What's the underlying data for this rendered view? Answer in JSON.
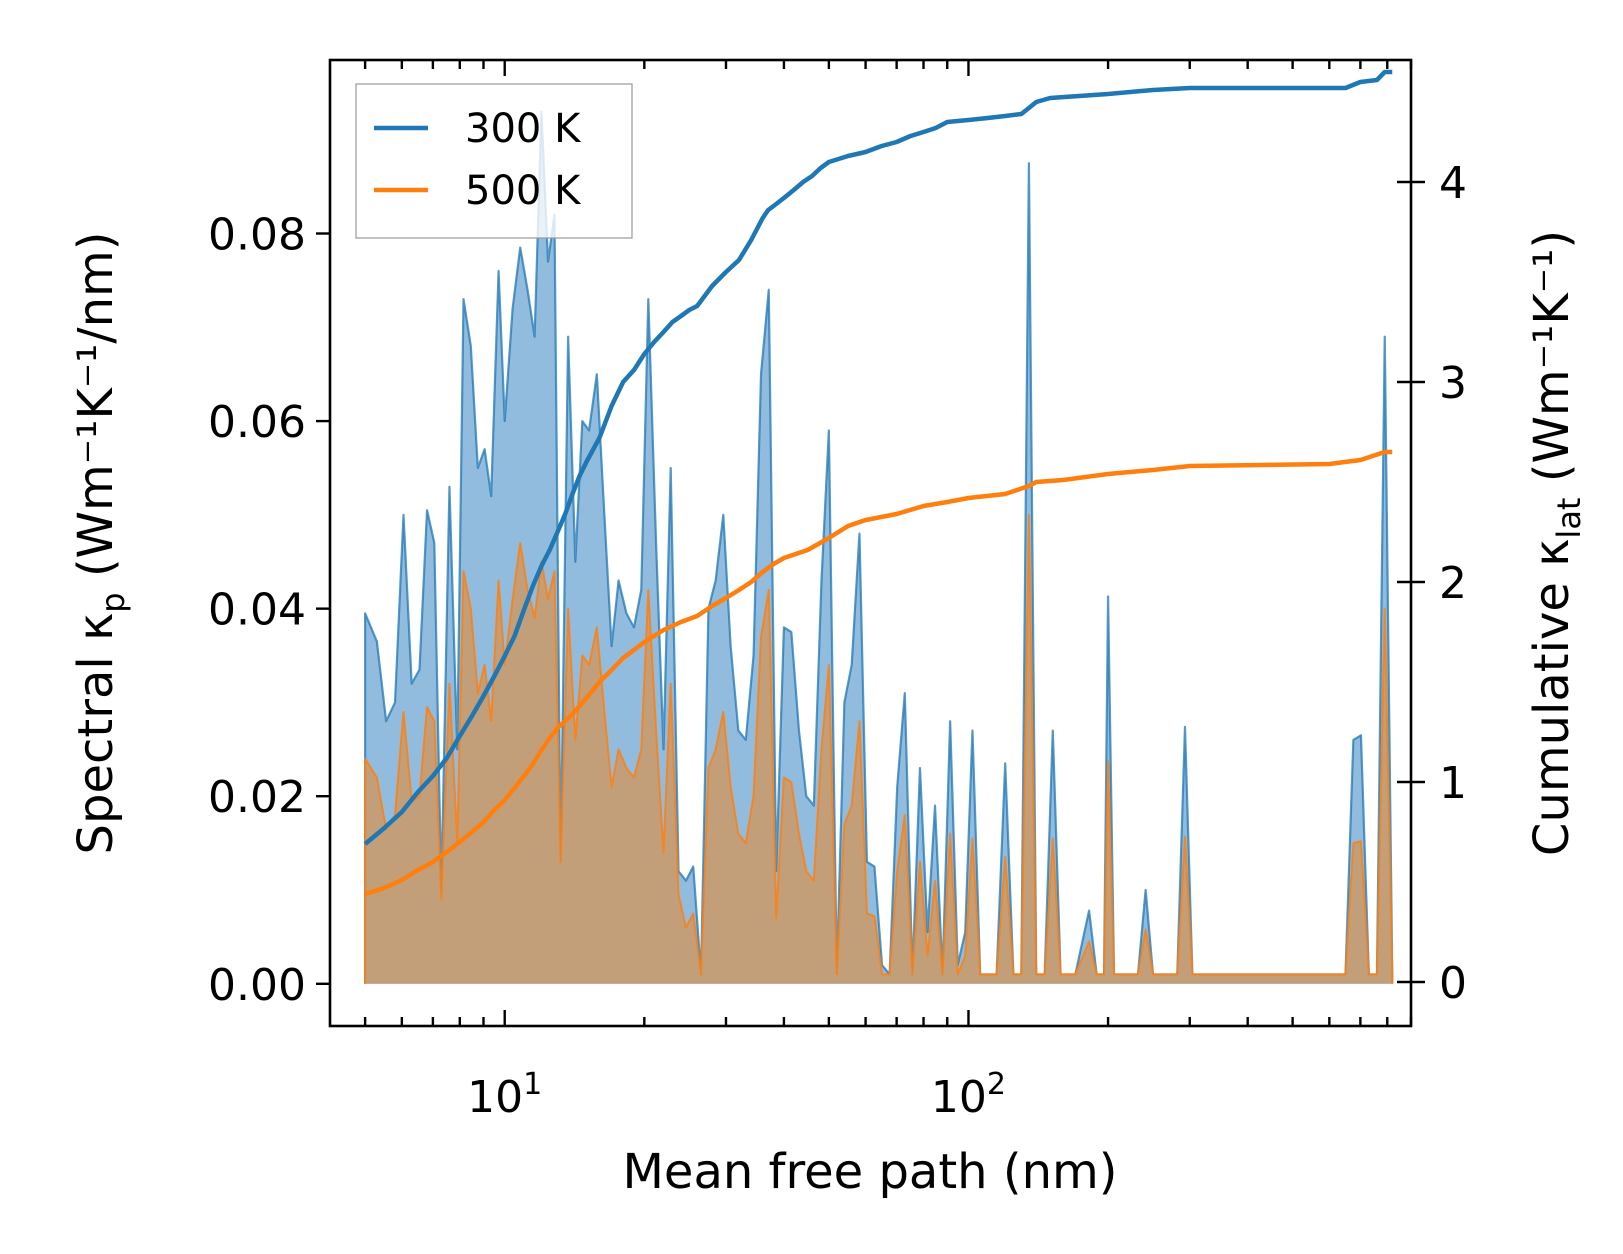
{
  "chart_data": {
    "type": "area+line",
    "xscale": "log",
    "xlabel": "Mean free path (nm)",
    "ylabel_left": "Spectral κ",
    "ylabel_left_sub": "p",
    "ylabel_left_units": "(Wm⁻¹K⁻¹/nm)",
    "ylabel_right": "Cumulative κ",
    "ylabel_right_sub": "lat",
    "ylabel_right_units": "(Wm⁻¹K⁻¹)",
    "xlim": [
      4.2,
      900
    ],
    "ylim_left": [
      -0.0045,
      0.0985
    ],
    "ylim_right": [
      -0.22,
      4.61
    ],
    "x_ticks": [
      {
        "value": 10,
        "base": "10",
        "exp": "1"
      },
      {
        "value": 100,
        "base": "10",
        "exp": "2"
      }
    ],
    "y_left_ticks": [
      {
        "value": 0.0,
        "label": "0.00"
      },
      {
        "value": 0.02,
        "label": "0.02"
      },
      {
        "value": 0.04,
        "label": "0.04"
      },
      {
        "value": 0.06,
        "label": "0.06"
      },
      {
        "value": 0.08,
        "label": "0.08"
      }
    ],
    "y_right_ticks": [
      {
        "value": 0,
        "label": "0"
      },
      {
        "value": 1,
        "label": "1"
      },
      {
        "value": 2,
        "label": "2"
      },
      {
        "value": 3,
        "label": "3"
      },
      {
        "value": 4,
        "label": "4"
      }
    ],
    "legend": {
      "position": "upper-left",
      "entries": [
        "300 K",
        "500 K"
      ]
    },
    "colors": {
      "s300": "#1f77b4",
      "s500": "#ff7f0e",
      "fill300": "#7fb0d8",
      "fill500": "#c99b6e",
      "axis": "#000000"
    },
    "spectral_300K": [
      [
        5.0,
        0.0
      ],
      [
        5.0,
        0.0395
      ],
      [
        5.3,
        0.0365
      ],
      [
        5.55,
        0.028
      ],
      [
        5.8,
        0.03
      ],
      [
        6.05,
        0.05
      ],
      [
        6.3,
        0.032
      ],
      [
        6.55,
        0.0335
      ],
      [
        6.8,
        0.0505
      ],
      [
        7.05,
        0.047
      ],
      [
        7.3,
        0.01
      ],
      [
        7.6,
        0.053
      ],
      [
        7.9,
        0.025
      ],
      [
        8.15,
        0.073
      ],
      [
        8.45,
        0.068
      ],
      [
        8.75,
        0.055
      ],
      [
        9.05,
        0.057
      ],
      [
        9.35,
        0.052
      ],
      [
        9.7,
        0.076
      ],
      [
        10.0,
        0.06
      ],
      [
        10.4,
        0.072
      ],
      [
        10.8,
        0.0785
      ],
      [
        11.2,
        0.074
      ],
      [
        11.6,
        0.069
      ],
      [
        12.0,
        0.093
      ],
      [
        12.4,
        0.077
      ],
      [
        12.8,
        0.082
      ],
      [
        13.2,
        0.013
      ],
      [
        13.7,
        0.069
      ],
      [
        14.2,
        0.045
      ],
      [
        14.7,
        0.06
      ],
      [
        15.2,
        0.059
      ],
      [
        15.8,
        0.065
      ],
      [
        16.4,
        0.05
      ],
      [
        17.0,
        0.036
      ],
      [
        17.6,
        0.043
      ],
      [
        18.3,
        0.0395
      ],
      [
        19.0,
        0.038
      ],
      [
        19.7,
        0.042
      ],
      [
        20.4,
        0.073
      ],
      [
        21.2,
        0.047
      ],
      [
        22.0,
        0.025
      ],
      [
        22.8,
        0.055
      ],
      [
        23.7,
        0.012
      ],
      [
        24.6,
        0.011
      ],
      [
        25.5,
        0.0125
      ],
      [
        26.5,
        0.001
      ],
      [
        27.5,
        0.04
      ],
      [
        28.5,
        0.043
      ],
      [
        29.6,
        0.05
      ],
      [
        30.7,
        0.036
      ],
      [
        31.9,
        0.027
      ],
      [
        33.1,
        0.026
      ],
      [
        34.4,
        0.035
      ],
      [
        35.7,
        0.065
      ],
      [
        37.1,
        0.074
      ],
      [
        38.5,
        0.012
      ],
      [
        40.0,
        0.038
      ],
      [
        41.5,
        0.0375
      ],
      [
        43.1,
        0.027
      ],
      [
        44.7,
        0.02
      ],
      [
        46.4,
        0.019
      ],
      [
        48.2,
        0.043
      ],
      [
        50.0,
        0.059
      ],
      [
        52.0,
        0.001
      ],
      [
        54.0,
        0.03
      ],
      [
        56.0,
        0.034
      ],
      [
        58.2,
        0.048
      ],
      [
        60.4,
        0.013
      ],
      [
        62.7,
        0.0125
      ],
      [
        65.1,
        0.002
      ],
      [
        67.6,
        0.001
      ],
      [
        70.2,
        0.021
      ],
      [
        72.9,
        0.031
      ],
      [
        75.7,
        0.001
      ],
      [
        78.6,
        0.023
      ],
      [
        81.6,
        0.0055
      ],
      [
        84.7,
        0.019
      ],
      [
        87.9,
        0.001
      ],
      [
        91.3,
        0.028
      ],
      [
        94.8,
        0.002
      ],
      [
        98.4,
        0.0055
      ],
      [
        102.0,
        0.027
      ],
      [
        106.0,
        0.001
      ],
      [
        115.0,
        0.001
      ],
      [
        120.0,
        0.0235
      ],
      [
        125.0,
        0.001
      ],
      [
        130.0,
        0.001
      ],
      [
        135.0,
        0.0875
      ],
      [
        140.0,
        0.001
      ],
      [
        146.0,
        0.001
      ],
      [
        152.0,
        0.027
      ],
      [
        158.0,
        0.001
      ],
      [
        170.0,
        0.001
      ],
      [
        182.0,
        0.0078
      ],
      [
        189.0,
        0.001
      ],
      [
        196.0,
        0.001
      ],
      [
        200.0,
        0.0413
      ],
      [
        206.0,
        0.001
      ],
      [
        232.0,
        0.001
      ],
      [
        241.0,
        0.01
      ],
      [
        250.0,
        0.001
      ],
      [
        282.0,
        0.001
      ],
      [
        293.0,
        0.0274
      ],
      [
        304.0,
        0.001
      ],
      [
        650.0,
        0.001
      ],
      [
        676.0,
        0.026
      ],
      [
        702.0,
        0.0265
      ],
      [
        730.0,
        0.001
      ],
      [
        760.0,
        0.001
      ],
      [
        790.0,
        0.069
      ],
      [
        820.0,
        0.001
      ],
      [
        820.0,
        0.0
      ]
    ],
    "spectral_500K": [
      [
        5.0,
        0.0
      ],
      [
        5.0,
        0.024
      ],
      [
        5.3,
        0.022
      ],
      [
        5.55,
        0.0165
      ],
      [
        5.8,
        0.018
      ],
      [
        6.05,
        0.029
      ],
      [
        6.3,
        0.0195
      ],
      [
        6.55,
        0.02
      ],
      [
        6.8,
        0.0295
      ],
      [
        7.05,
        0.028
      ],
      [
        7.3,
        0.009
      ],
      [
        7.6,
        0.032
      ],
      [
        7.9,
        0.015
      ],
      [
        8.15,
        0.044
      ],
      [
        8.45,
        0.04
      ],
      [
        8.75,
        0.031
      ],
      [
        9.05,
        0.034
      ],
      [
        9.35,
        0.028
      ],
      [
        9.7,
        0.043
      ],
      [
        10.0,
        0.034
      ],
      [
        10.4,
        0.041
      ],
      [
        10.8,
        0.047
      ],
      [
        11.2,
        0.042
      ],
      [
        11.6,
        0.039
      ],
      [
        12.0,
        0.045
      ],
      [
        12.4,
        0.041
      ],
      [
        12.8,
        0.044
      ],
      [
        13.2,
        0.013
      ],
      [
        13.7,
        0.04
      ],
      [
        14.2,
        0.026
      ],
      [
        14.7,
        0.035
      ],
      [
        15.2,
        0.034
      ],
      [
        15.8,
        0.038
      ],
      [
        16.4,
        0.029
      ],
      [
        17.0,
        0.021
      ],
      [
        17.6,
        0.025
      ],
      [
        18.3,
        0.023
      ],
      [
        19.0,
        0.022
      ],
      [
        19.7,
        0.025
      ],
      [
        20.4,
        0.042
      ],
      [
        21.2,
        0.027
      ],
      [
        22.0,
        0.014
      ],
      [
        22.8,
        0.032
      ],
      [
        23.7,
        0.0095
      ],
      [
        24.6,
        0.006
      ],
      [
        25.5,
        0.0075
      ],
      [
        26.5,
        0.001
      ],
      [
        27.5,
        0.023
      ],
      [
        28.5,
        0.025
      ],
      [
        29.6,
        0.029
      ],
      [
        30.7,
        0.021
      ],
      [
        31.9,
        0.016
      ],
      [
        33.1,
        0.015
      ],
      [
        34.4,
        0.02
      ],
      [
        35.7,
        0.037
      ],
      [
        37.1,
        0.042
      ],
      [
        38.5,
        0.007
      ],
      [
        40.0,
        0.022
      ],
      [
        41.5,
        0.0215
      ],
      [
        43.1,
        0.016
      ],
      [
        44.7,
        0.012
      ],
      [
        46.4,
        0.011
      ],
      [
        48.2,
        0.025
      ],
      [
        50.0,
        0.034
      ],
      [
        52.0,
        0.001
      ],
      [
        54.0,
        0.017
      ],
      [
        56.0,
        0.019
      ],
      [
        58.2,
        0.028
      ],
      [
        60.4,
        0.0075
      ],
      [
        62.7,
        0.0072
      ],
      [
        65.1,
        0.001
      ],
      [
        67.6,
        0.001
      ],
      [
        70.2,
        0.012
      ],
      [
        72.9,
        0.018
      ],
      [
        75.7,
        0.001
      ],
      [
        78.6,
        0.013
      ],
      [
        81.6,
        0.003
      ],
      [
        84.7,
        0.011
      ],
      [
        87.9,
        0.001
      ],
      [
        91.3,
        0.016
      ],
      [
        94.8,
        0.001
      ],
      [
        98.4,
        0.003
      ],
      [
        102.0,
        0.0155
      ],
      [
        106.0,
        0.001
      ],
      [
        115.0,
        0.001
      ],
      [
        120.0,
        0.0135
      ],
      [
        125.0,
        0.001
      ],
      [
        130.0,
        0.001
      ],
      [
        135.0,
        0.05
      ],
      [
        140.0,
        0.001
      ],
      [
        146.0,
        0.001
      ],
      [
        152.0,
        0.0155
      ],
      [
        158.0,
        0.001
      ],
      [
        170.0,
        0.001
      ],
      [
        182.0,
        0.0045
      ],
      [
        189.0,
        0.001
      ],
      [
        196.0,
        0.001
      ],
      [
        200.0,
        0.0237
      ],
      [
        206.0,
        0.001
      ],
      [
        232.0,
        0.001
      ],
      [
        241.0,
        0.0058
      ],
      [
        250.0,
        0.001
      ],
      [
        282.0,
        0.001
      ],
      [
        293.0,
        0.0157
      ],
      [
        304.0,
        0.001
      ],
      [
        650.0,
        0.001
      ],
      [
        676.0,
        0.015
      ],
      [
        702.0,
        0.0152
      ],
      [
        730.0,
        0.001
      ],
      [
        760.0,
        0.001
      ],
      [
        790.0,
        0.04
      ],
      [
        820.0,
        0.001
      ],
      [
        820.0,
        0.0
      ]
    ],
    "cumulative_300K": [
      [
        5.0,
        0.69
      ],
      [
        5.5,
        0.77
      ],
      [
        6.0,
        0.85
      ],
      [
        6.5,
        0.95
      ],
      [
        7.0,
        1.03
      ],
      [
        7.5,
        1.12
      ],
      [
        8.0,
        1.23
      ],
      [
        8.5,
        1.33
      ],
      [
        9.0,
        1.43
      ],
      [
        9.5,
        1.53
      ],
      [
        10.0,
        1.63
      ],
      [
        10.5,
        1.73
      ],
      [
        11.0,
        1.86
      ],
      [
        11.5,
        1.98
      ],
      [
        12.0,
        2.08
      ],
      [
        12.5,
        2.16
      ],
      [
        13.0,
        2.25
      ],
      [
        13.5,
        2.34
      ],
      [
        14.0,
        2.44
      ],
      [
        14.5,
        2.53
      ],
      [
        15.0,
        2.6
      ],
      [
        16.0,
        2.72
      ],
      [
        17.0,
        2.88
      ],
      [
        18.0,
        3.0
      ],
      [
        19.0,
        3.06
      ],
      [
        20.0,
        3.14
      ],
      [
        21.0,
        3.2
      ],
      [
        22.0,
        3.25
      ],
      [
        23.0,
        3.3
      ],
      [
        24.0,
        3.33
      ],
      [
        25.0,
        3.36
      ],
      [
        26.0,
        3.38
      ],
      [
        28.0,
        3.48
      ],
      [
        30.0,
        3.55
      ],
      [
        32.0,
        3.61
      ],
      [
        34.0,
        3.71
      ],
      [
        36.0,
        3.82
      ],
      [
        37.0,
        3.86
      ],
      [
        38.0,
        3.88
      ],
      [
        40.0,
        3.92
      ],
      [
        42.0,
        3.96
      ],
      [
        44.0,
        4.0
      ],
      [
        46.0,
        4.03
      ],
      [
        48.0,
        4.07
      ],
      [
        50.0,
        4.1
      ],
      [
        55.0,
        4.13
      ],
      [
        60.0,
        4.15
      ],
      [
        65.0,
        4.18
      ],
      [
        70.0,
        4.2
      ],
      [
        75.0,
        4.23
      ],
      [
        80.0,
        4.25
      ],
      [
        85.0,
        4.27
      ],
      [
        90.0,
        4.3
      ],
      [
        100.0,
        4.31
      ],
      [
        110.0,
        4.32
      ],
      [
        120.0,
        4.33
      ],
      [
        130.0,
        4.34
      ],
      [
        135.0,
        4.37
      ],
      [
        140.0,
        4.4
      ],
      [
        150.0,
        4.42
      ],
      [
        200.0,
        4.44
      ],
      [
        250.0,
        4.46
      ],
      [
        300.0,
        4.47
      ],
      [
        600.0,
        4.47
      ],
      [
        650.0,
        4.47
      ],
      [
        700.0,
        4.5
      ],
      [
        760.0,
        4.51
      ],
      [
        790.0,
        4.55
      ],
      [
        820.0,
        4.55
      ]
    ],
    "cumulative_500K": [
      [
        5.0,
        0.44
      ],
      [
        5.5,
        0.47
      ],
      [
        6.0,
        0.51
      ],
      [
        6.5,
        0.56
      ],
      [
        7.0,
        0.6
      ],
      [
        7.5,
        0.65
      ],
      [
        8.0,
        0.7
      ],
      [
        8.5,
        0.75
      ],
      [
        9.0,
        0.8
      ],
      [
        9.5,
        0.86
      ],
      [
        10.0,
        0.91
      ],
      [
        10.5,
        0.97
      ],
      [
        11.0,
        1.03
      ],
      [
        11.5,
        1.09
      ],
      [
        12.0,
        1.16
      ],
      [
        12.5,
        1.22
      ],
      [
        13.0,
        1.27
      ],
      [
        14.0,
        1.34
      ],
      [
        15.0,
        1.42
      ],
      [
        16.0,
        1.5
      ],
      [
        17.0,
        1.56
      ],
      [
        18.0,
        1.62
      ],
      [
        19.0,
        1.66
      ],
      [
        20.0,
        1.7
      ],
      [
        22.0,
        1.76
      ],
      [
        24.0,
        1.8
      ],
      [
        26.0,
        1.83
      ],
      [
        28.0,
        1.88
      ],
      [
        30.0,
        1.92
      ],
      [
        32.0,
        1.96
      ],
      [
        34.0,
        2.0
      ],
      [
        36.0,
        2.05
      ],
      [
        38.0,
        2.09
      ],
      [
        40.0,
        2.12
      ],
      [
        45.0,
        2.16
      ],
      [
        50.0,
        2.22
      ],
      [
        55.0,
        2.28
      ],
      [
        60.0,
        2.31
      ],
      [
        70.0,
        2.34
      ],
      [
        80.0,
        2.38
      ],
      [
        90.0,
        2.4
      ],
      [
        100.0,
        2.42
      ],
      [
        120.0,
        2.44
      ],
      [
        135.0,
        2.48
      ],
      [
        140.0,
        2.5
      ],
      [
        160.0,
        2.51
      ],
      [
        200.0,
        2.54
      ],
      [
        250.0,
        2.56
      ],
      [
        300.0,
        2.58
      ],
      [
        600.0,
        2.59
      ],
      [
        700.0,
        2.61
      ],
      [
        790.0,
        2.65
      ],
      [
        820.0,
        2.65
      ]
    ]
  }
}
